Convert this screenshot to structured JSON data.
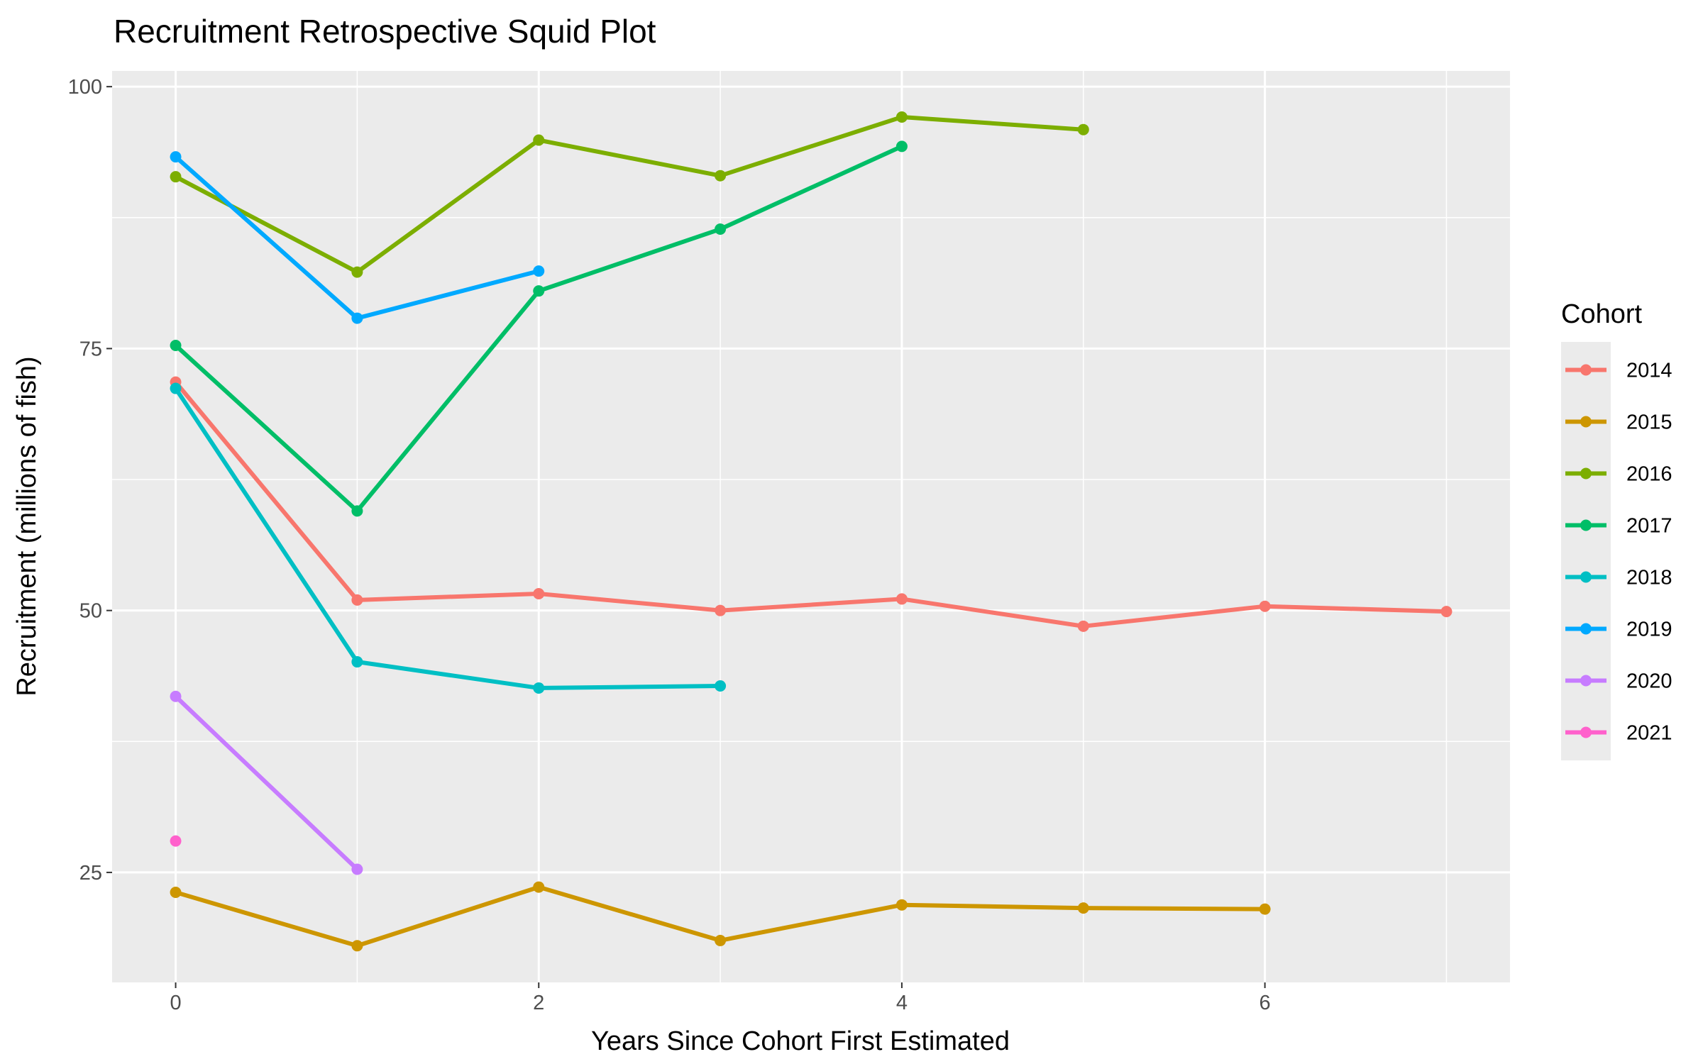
{
  "chart_data": {
    "type": "line",
    "title": "Recruitment Retrospective Squid Plot",
    "xlabel": "Years Since Cohort First Estimated",
    "ylabel": "Recruitment (millions of fish)",
    "xlim": [
      -0.35,
      7.35
    ],
    "ylim": [
      14.5,
      101.5
    ],
    "x_ticks": [
      0,
      2,
      4,
      6
    ],
    "x_tick_labels": [
      "0",
      "2",
      "4",
      "6"
    ],
    "y_ticks": [
      25,
      50,
      75,
      100
    ],
    "y_tick_labels": [
      "25",
      "50",
      "75",
      "100"
    ],
    "x_minor_grid": [
      1,
      3,
      5,
      7
    ],
    "y_minor_grid": [
      37.5,
      62.5,
      87.5
    ],
    "grid": true,
    "legend_title": "Cohort",
    "legend_position": "right",
    "series": [
      {
        "name": "2014",
        "color": "#F8766D",
        "x": [
          0,
          1,
          2,
          3,
          4,
          5,
          6,
          7
        ],
        "values": [
          71.8,
          51.0,
          51.6,
          50.0,
          51.1,
          48.5,
          50.4,
          49.9
        ]
      },
      {
        "name": "2015",
        "color": "#CD9600",
        "x": [
          0,
          1,
          2,
          3,
          4,
          5,
          6
        ],
        "values": [
          23.1,
          18.0,
          23.6,
          18.5,
          21.9,
          21.6,
          21.5
        ]
      },
      {
        "name": "2016",
        "color": "#7CAE00",
        "x": [
          0,
          1,
          2,
          3,
          4,
          5
        ],
        "values": [
          91.4,
          82.3,
          94.9,
          91.5,
          97.1,
          95.9
        ]
      },
      {
        "name": "2017",
        "color": "#00BE67",
        "x": [
          0,
          1,
          2,
          3,
          4
        ],
        "values": [
          75.3,
          59.5,
          80.5,
          86.4,
          94.3
        ]
      },
      {
        "name": "2018",
        "color": "#00BFC4",
        "x": [
          0,
          1,
          2,
          3
        ],
        "values": [
          71.2,
          45.1,
          42.6,
          42.8
        ]
      },
      {
        "name": "2019",
        "color": "#00A9FF",
        "x": [
          0,
          1,
          2
        ],
        "values": [
          93.3,
          77.9,
          82.4
        ]
      },
      {
        "name": "2020",
        "color": "#C77CFF",
        "x": [
          0,
          1
        ],
        "values": [
          41.8,
          25.3
        ]
      },
      {
        "name": "2021",
        "color": "#FF61CC",
        "x": [
          0
        ],
        "values": [
          28.0
        ]
      }
    ]
  }
}
